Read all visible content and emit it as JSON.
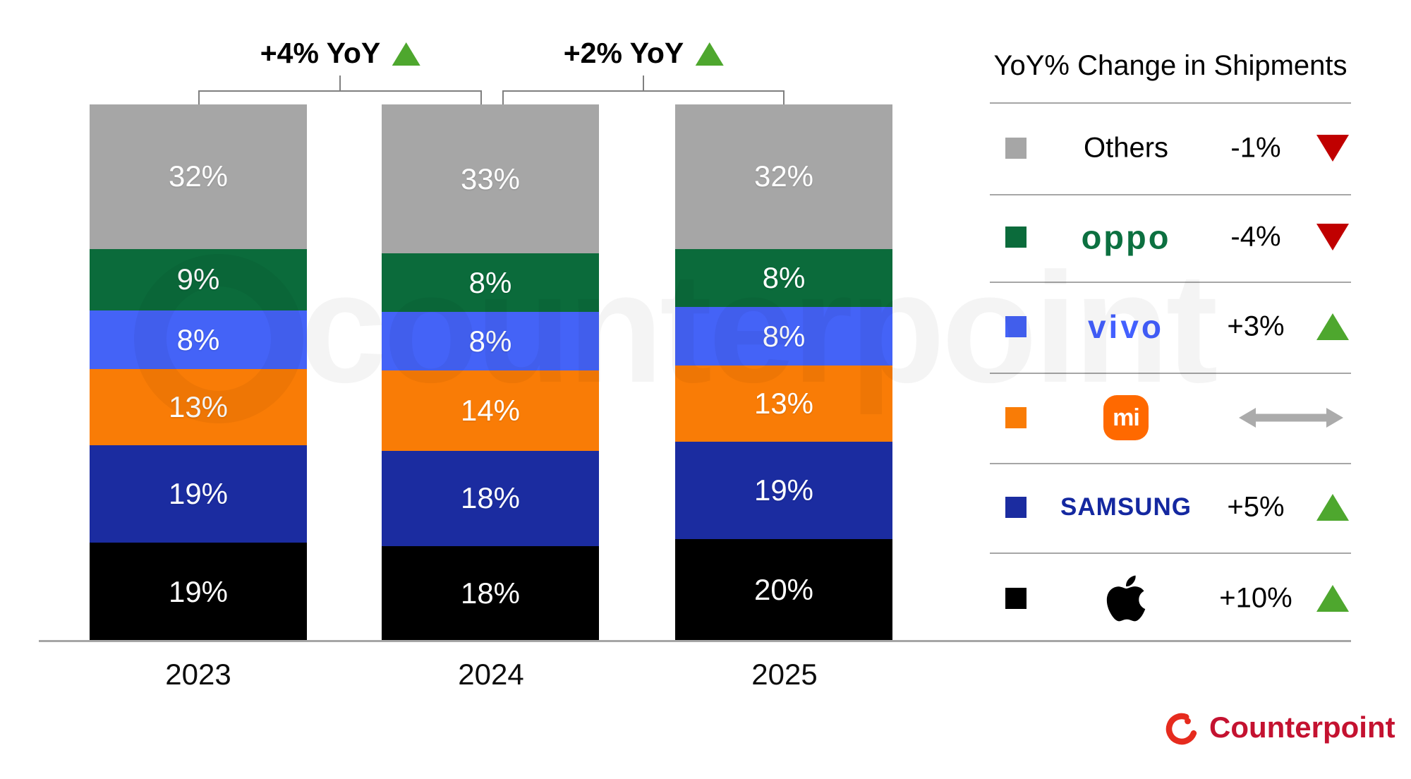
{
  "chart_data": {
    "type": "bar",
    "subtype": "stacked-100",
    "categories": [
      "2023",
      "2024",
      "2025"
    ],
    "series": [
      {
        "name": "Others",
        "color": "#a6a6a6",
        "values": [
          32,
          33,
          32
        ]
      },
      {
        "name": "OPPO",
        "color": "#0b6b3b",
        "values": [
          9,
          8,
          8
        ]
      },
      {
        "name": "vivo",
        "color": "#4463f7",
        "values": [
          8,
          8,
          8
        ]
      },
      {
        "name": "Xiaomi",
        "color": "#f97c06",
        "values": [
          13,
          14,
          13
        ]
      },
      {
        "name": "Samsung",
        "color": "#1b2ca0",
        "values": [
          19,
          18,
          19
        ]
      },
      {
        "name": "Apple",
        "color": "#000000",
        "values": [
          19,
          18,
          20
        ]
      }
    ],
    "value_suffix": "%",
    "ylim": [
      0,
      100
    ],
    "grid": false,
    "annotations": [
      {
        "label": "+4% YoY",
        "direction": "up",
        "between": [
          "2023",
          "2024"
        ]
      },
      {
        "label": "+2% YoY",
        "direction": "up",
        "between": [
          "2024",
          "2025"
        ]
      }
    ],
    "legend_position": "right",
    "legend": {
      "title": "YoY% Change in Shipments",
      "rows": [
        {
          "brand": "Others",
          "brand_type": "text",
          "swatch": "#a6a6a6",
          "change": "-1%",
          "direction": "down"
        },
        {
          "brand": "oppo",
          "brand_type": "oppo",
          "swatch": "#0b6b3b",
          "change": "-4%",
          "direction": "down"
        },
        {
          "brand": "vivo",
          "brand_type": "vivo",
          "swatch": "#4463f7",
          "change": "+3%",
          "direction": "up"
        },
        {
          "brand": "mi",
          "brand_type": "mi",
          "swatch": "#f97c06",
          "change": "",
          "direction": "flat"
        },
        {
          "brand": "SAMSUNG",
          "brand_type": "samsung",
          "swatch": "#1b2ca0",
          "change": "+5%",
          "direction": "up"
        },
        {
          "brand": "Apple",
          "brand_type": "apple",
          "swatch": "#000000",
          "change": "+10%",
          "direction": "up"
        }
      ]
    }
  },
  "watermark": {
    "text": "counterpoint"
  },
  "branding": {
    "name": "Counterpoint"
  },
  "colors": {
    "up": "#4ea72e",
    "down": "#c00000",
    "flat": "#ababab",
    "line": "#7f7f7f",
    "axis": "#a6a6a6",
    "watermark": "rgba(0,0,0,0.042)",
    "brand_red": "#c41230",
    "logo_ring_red": "#e62b1e"
  }
}
